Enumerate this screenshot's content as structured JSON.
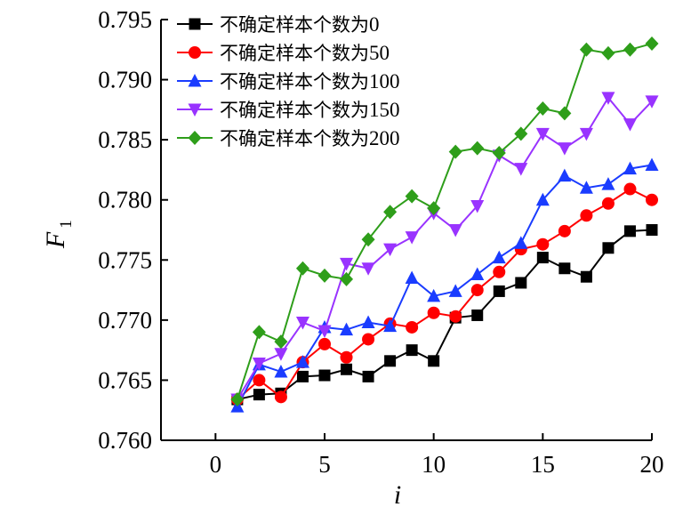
{
  "chart_data": {
    "type": "line",
    "xlabel": "i",
    "ylabel": {
      "main": "F",
      "sub": "1"
    },
    "xlim": [
      -2.5,
      20
    ],
    "ylim": [
      0.76,
      0.795
    ],
    "xticks": [
      0,
      5,
      10,
      15,
      20
    ],
    "yticks": [
      0.76,
      0.765,
      0.77,
      0.775,
      0.78,
      0.785,
      0.79,
      0.795
    ],
    "ytick_labels": [
      "0.760",
      "0.765",
      "0.770",
      "0.775",
      "0.780",
      "0.785",
      "0.790",
      "0.795"
    ],
    "legend_position": "top-left",
    "grid": false,
    "x": [
      1,
      2,
      3,
      4,
      5,
      6,
      7,
      8,
      9,
      10,
      11,
      12,
      13,
      14,
      15,
      16,
      17,
      18,
      19,
      20
    ],
    "series": [
      {
        "name_text": "不确定样本个数为",
        "name_num": "0",
        "color": "#000000",
        "marker": "square",
        "values": [
          0.7634,
          0.7638,
          0.7639,
          0.7653,
          0.7654,
          0.7659,
          0.7653,
          0.7666,
          0.7675,
          0.7666,
          0.7702,
          0.7704,
          0.7724,
          0.7731,
          0.7752,
          0.7743,
          0.7736,
          0.776,
          0.7774,
          0.7775
        ]
      },
      {
        "name_text": "不确定样本个数为",
        "name_num": "50",
        "color": "#ff0000",
        "marker": "circle",
        "values": [
          0.7634,
          0.765,
          0.7636,
          0.7665,
          0.768,
          0.7669,
          0.7684,
          0.7697,
          0.7694,
          0.7706,
          0.7703,
          0.7725,
          0.774,
          0.7759,
          0.7763,
          0.7774,
          0.7787,
          0.7797,
          0.7809,
          0.78
        ]
      },
      {
        "name_text": "不确定样本个数为",
        "name_num": "100",
        "color": "#1a3cff",
        "marker": "triangle-up",
        "values": [
          0.7628,
          0.7663,
          0.7657,
          0.7665,
          0.7694,
          0.7692,
          0.7698,
          0.7695,
          0.7735,
          0.772,
          0.7724,
          0.7738,
          0.7752,
          0.7764,
          0.78,
          0.782,
          0.781,
          0.7813,
          0.7826,
          0.7829
        ]
      },
      {
        "name_text": "不确定样本个数为",
        "name_num": "150",
        "color": "#9933ff",
        "marker": "triangle-down",
        "values": [
          0.7634,
          0.7664,
          0.7672,
          0.7698,
          0.7691,
          0.7747,
          0.7743,
          0.7759,
          0.7769,
          0.7789,
          0.7775,
          0.7795,
          0.7837,
          0.7826,
          0.7855,
          0.7843,
          0.7855,
          0.7885,
          0.7863,
          0.7882
        ]
      },
      {
        "name_text": "不确定样本个数为",
        "name_num": "200",
        "color": "#2e9e1a",
        "marker": "diamond",
        "values": [
          0.7634,
          0.769,
          0.7682,
          0.7743,
          0.7737,
          0.7734,
          0.7767,
          0.779,
          0.7803,
          0.7793,
          0.784,
          0.7843,
          0.7839,
          0.7855,
          0.7876,
          0.7872,
          0.7925,
          0.7922,
          0.7925,
          0.793
        ]
      }
    ]
  }
}
